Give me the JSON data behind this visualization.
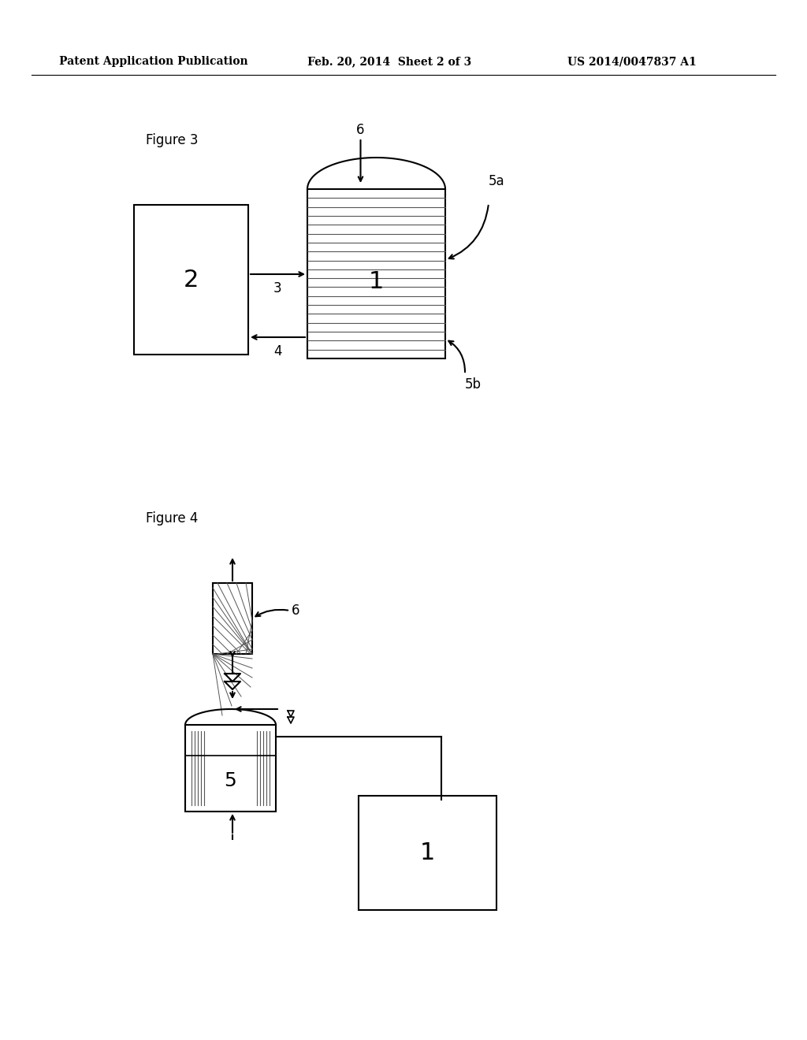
{
  "bg_color": "#ffffff",
  "header_left": "Patent Application Publication",
  "header_mid": "Feb. 20, 2014  Sheet 2 of 3",
  "header_right": "US 2014/0047837 A1",
  "fig3_label": "Figure 3",
  "fig4_label": "Figure 4",
  "line_color": "#000000",
  "text_color": "#000000"
}
